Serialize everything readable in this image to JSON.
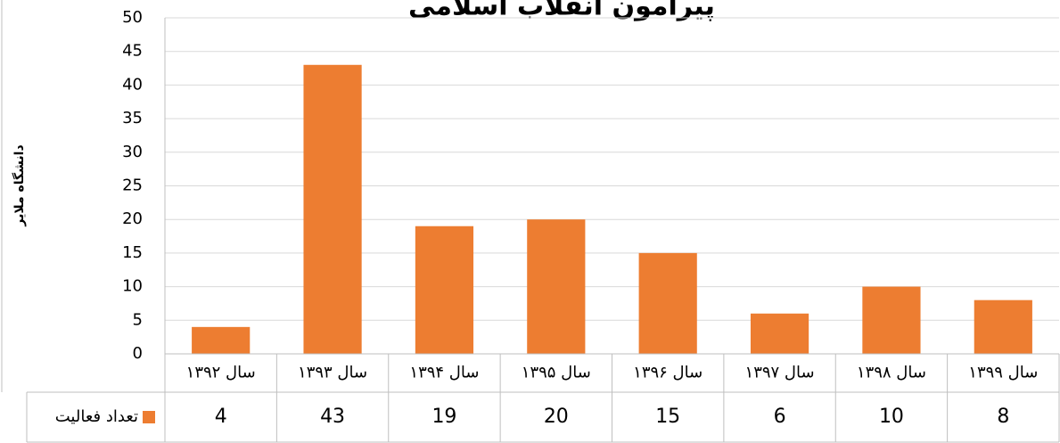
{
  "chart_data": {
    "type": "bar",
    "title": "پیرامون انقلاب اسلامی",
    "y_label": "دانشگاه ملایر",
    "categories": [
      "سال ۱۳۹۲",
      "سال ۱۳۹۳",
      "سال ۱۳۹۴",
      "سال ۱۳۹۵",
      "سال ۱۳۹۶",
      "سال ۱۳۹۷",
      "سال ۱۳۹۸",
      "سال ۱۳۹۹"
    ],
    "series": [
      {
        "name": "تعداد فعالیت",
        "color": "#ED7D31",
        "values": [
          4,
          43,
          19,
          20,
          15,
          6,
          10,
          8
        ]
      }
    ],
    "ylim": [
      0,
      50
    ],
    "yticks": [
      0,
      5,
      10,
      15,
      20,
      25,
      30,
      35,
      40,
      45,
      50
    ],
    "grid": true,
    "data_table": true
  }
}
